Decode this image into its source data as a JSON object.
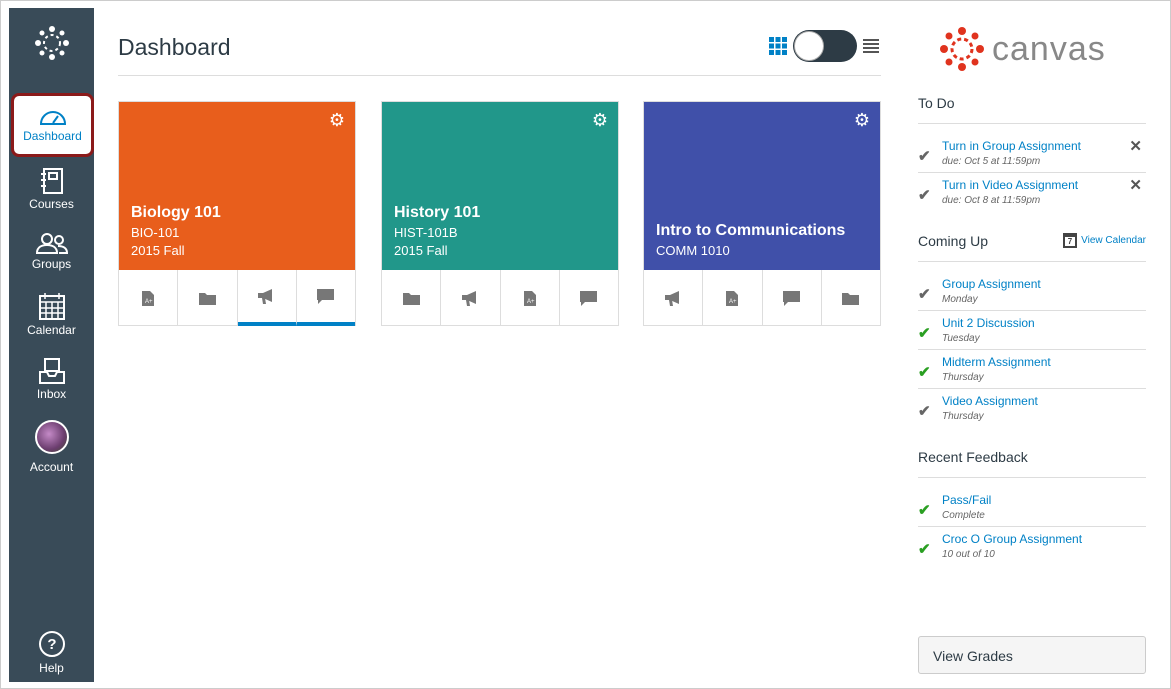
{
  "nav": {
    "items": [
      {
        "label": "Dashboard",
        "icon": "dashboard-icon"
      },
      {
        "label": "Courses",
        "icon": "courses-icon"
      },
      {
        "label": "Groups",
        "icon": "groups-icon"
      },
      {
        "label": "Calendar",
        "icon": "calendar-icon"
      },
      {
        "label": "Inbox",
        "icon": "inbox-icon"
      },
      {
        "label": "Account",
        "icon": "avatar"
      },
      {
        "label": "Help",
        "icon": "help-icon"
      }
    ]
  },
  "header": {
    "title": "Dashboard"
  },
  "brand": {
    "name": "canvas",
    "color": "#e0331e"
  },
  "cards": [
    {
      "name": "Biology 101",
      "code": "BIO-101",
      "term": "2015 Fall",
      "color": "#e85e1c",
      "icons": [
        "assignment",
        "folder",
        "announcement",
        "discussion"
      ],
      "active": [
        2,
        3
      ]
    },
    {
      "name": "History 101",
      "code": "HIST-101B",
      "term": "2015 Fall",
      "color": "#21978a",
      "icons": [
        "folder",
        "announcement",
        "assignment",
        "discussion"
      ],
      "active": []
    },
    {
      "name": "Intro to Communications",
      "code": "COMM 1010",
      "term": "",
      "color": "#4050a9",
      "icons": [
        "announcement",
        "assignment",
        "discussion",
        "folder"
      ],
      "active": []
    }
  ],
  "todo": {
    "title": "To Do",
    "items": [
      {
        "label": "Turn in Group Assignment",
        "due": "due: Oct 5 at 11:59pm"
      },
      {
        "label": "Turn in Video Assignment",
        "due": "due: Oct 8 at 11:59pm"
      }
    ]
  },
  "coming": {
    "title": "Coming Up",
    "calendar_link": "View Calendar",
    "calendar_day": "7",
    "items": [
      {
        "label": "Group Assignment",
        "when": "Monday",
        "done": false
      },
      {
        "label": "Unit 2 Discussion",
        "when": "Tuesday",
        "done": true
      },
      {
        "label": "Midterm Assignment",
        "when": "Thursday",
        "done": true
      },
      {
        "label": "Video Assignment",
        "when": "Thursday",
        "done": false
      }
    ]
  },
  "feedback": {
    "title": "Recent Feedback",
    "items": [
      {
        "label": "Pass/Fail",
        "detail": "Complete"
      },
      {
        "label": "Croc O Group Assignment",
        "detail": "10 out of 10"
      }
    ]
  },
  "view_grades": "View Grades"
}
